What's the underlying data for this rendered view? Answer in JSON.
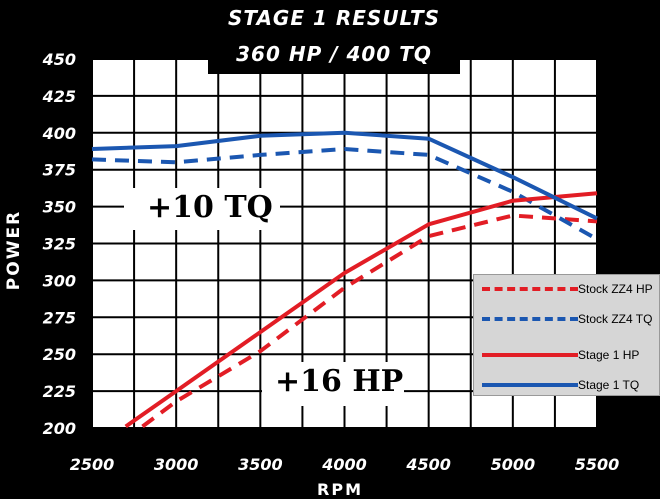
{
  "title": {
    "line1": "STAGE 1 RESULTS",
    "line2": "360 HP / 400 TQ"
  },
  "annotations": {
    "tq_gain": "+10 TQ",
    "hp_gain": "+16 HP"
  },
  "chart_data": {
    "type": "line",
    "xlabel": "RPM",
    "ylabel": "POWER",
    "xlim": [
      2500,
      5500
    ],
    "ylim": [
      200,
      450
    ],
    "x_ticks": [
      2500,
      3000,
      3500,
      4000,
      4500,
      5000,
      5500
    ],
    "y_ticks": [
      200,
      225,
      250,
      275,
      300,
      325,
      350,
      375,
      400,
      425,
      450
    ],
    "grid": true,
    "legend": "bottom-right",
    "series": [
      {
        "name": "Stock ZZ4 HP",
        "color": "#e21d25",
        "dash": true,
        "x": [
          2800,
          3000,
          3500,
          4000,
          4500,
          5000,
          5500
        ],
        "y": [
          201,
          218,
          252,
          295,
          330,
          344,
          340
        ]
      },
      {
        "name": "Stock ZZ4 TQ",
        "color": "#1b57b1",
        "dash": true,
        "x": [
          2500,
          3000,
          3500,
          4000,
          4500,
          5000,
          5500
        ],
        "y": [
          382,
          380,
          385,
          389,
          385,
          360,
          328
        ]
      },
      {
        "name": "Stage 1 HP",
        "color": "#e21d25",
        "dash": false,
        "x": [
          2700,
          3000,
          3500,
          4000,
          4500,
          5000,
          5500
        ],
        "y": [
          201,
          225,
          265,
          305,
          338,
          354,
          359
        ]
      },
      {
        "name": "Stage 1 TQ",
        "color": "#1b57b1",
        "dash": false,
        "x": [
          2500,
          3000,
          3500,
          4000,
          4500,
          5000,
          5500
        ],
        "y": [
          389,
          391,
          398,
          400,
          396,
          370,
          342
        ]
      }
    ]
  }
}
